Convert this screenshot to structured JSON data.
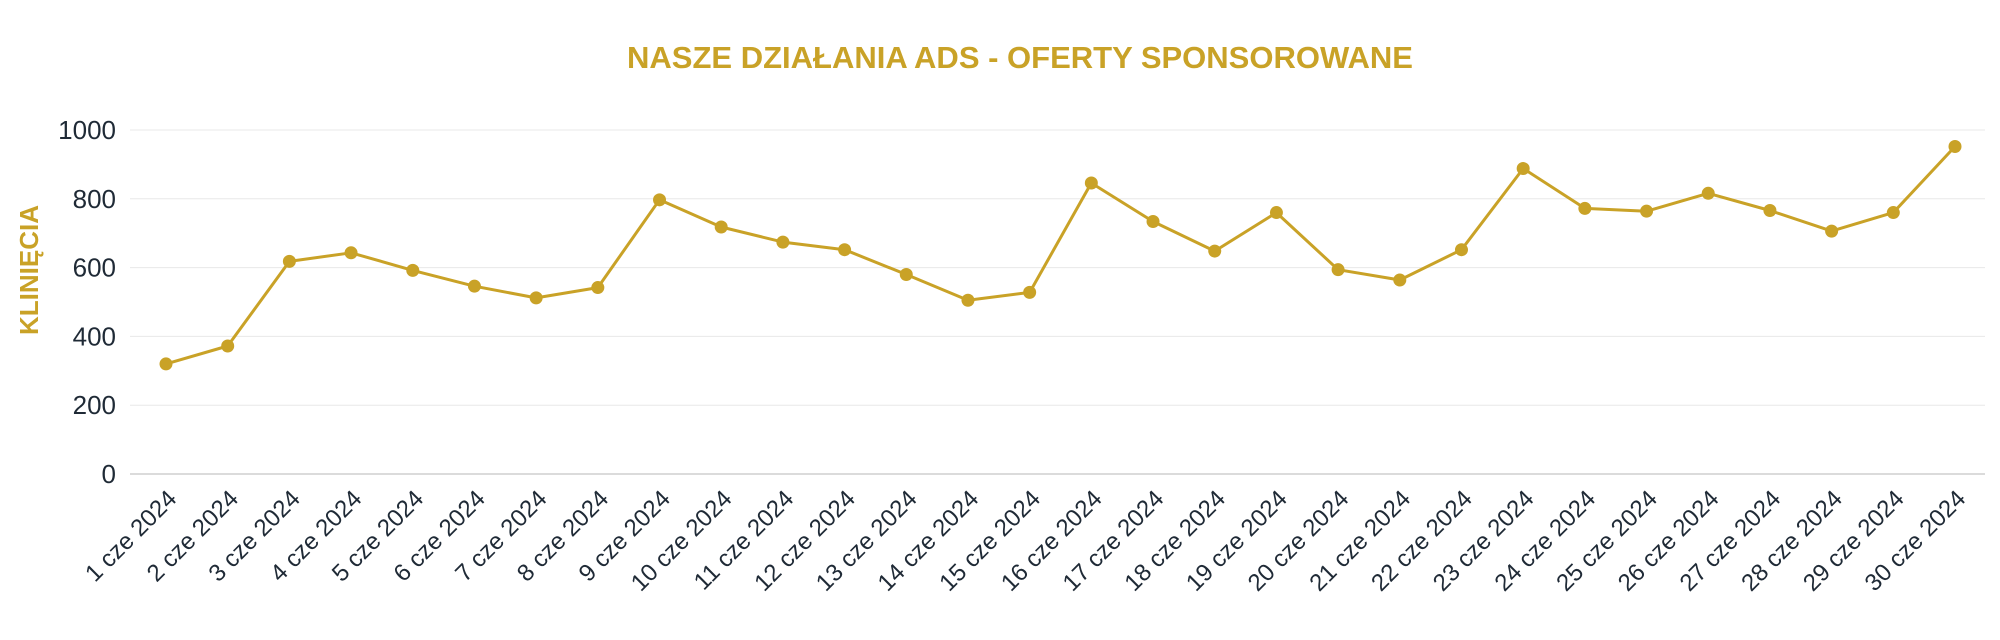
{
  "chart_data": {
    "type": "line",
    "title": "NASZE DZIAŁANIA ADS - OFERTY SPONSOROWANE",
    "ylabel": "KLINIĘCIA",
    "xlabel": "",
    "ylim": [
      0,
      1000
    ],
    "yticks": [
      "0",
      "200",
      "400",
      "600",
      "800",
      "1000"
    ],
    "grid": true,
    "categories": [
      "1 cze 2024",
      "2 cze 2024",
      "3 cze 2024",
      "4 cze 2024",
      "5 cze 2024",
      "6 cze 2024",
      "7 cze 2024",
      "8 cze 2024",
      "9 cze 2024",
      "10 cze 2024",
      "11 cze 2024",
      "12 cze 2024",
      "13 cze 2024",
      "14 cze 2024",
      "15 cze 2024",
      "16 cze 2024",
      "17 cze 2024",
      "18 cze 2024",
      "19 cze 2024",
      "20 cze 2024",
      "21 cze 2024",
      "22 cze 2024",
      "23 cze 2024",
      "24 cze 2024",
      "25 cze 2024",
      "26 cze 2024",
      "27 cze 2024",
      "28 cze 2024",
      "29 cze 2024",
      "30 cze 2024"
    ],
    "series": [
      {
        "values": [
          320,
          372,
          618,
          643,
          592,
          546,
          512,
          542,
          797,
          718,
          674,
          652,
          580,
          505,
          528,
          846,
          734,
          648,
          760,
          594,
          564,
          652,
          888,
          772,
          764,
          816,
          766,
          706,
          760,
          952
        ]
      }
    ],
    "colors": {
      "accent": "#c9a227",
      "text": "#1f2a36"
    }
  }
}
